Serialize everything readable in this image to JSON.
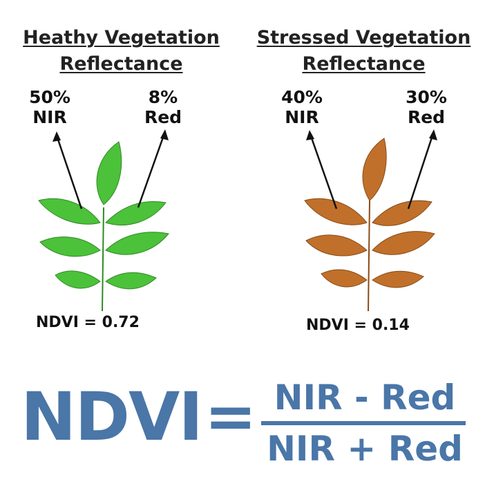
{
  "healthy": {
    "title_line1": "Heathy Vegetation",
    "title_line2": "Reflectance",
    "nir_pct": "50%",
    "nir_label": "NIR",
    "red_pct": "8%",
    "red_label": "Red",
    "ndvi_text": "NDVI = 0.72",
    "leaf_color": "#4cc13a",
    "leaf_stroke": "#2e8a22"
  },
  "stressed": {
    "title_line1": "Stressed Vegetation",
    "title_line2": "Reflectance",
    "nir_pct": "40%",
    "nir_label": "NIR",
    "red_pct": "30%",
    "red_label": "Red",
    "ndvi_text": "NDVI = 0.14",
    "leaf_color": "#c0702a",
    "leaf_stroke": "#8a4a15"
  },
  "formula": {
    "lhs": "NDVI",
    "equals": "=",
    "numerator": "NIR - Red",
    "denominator": "NIR + Red",
    "color": "#4a76a8"
  }
}
